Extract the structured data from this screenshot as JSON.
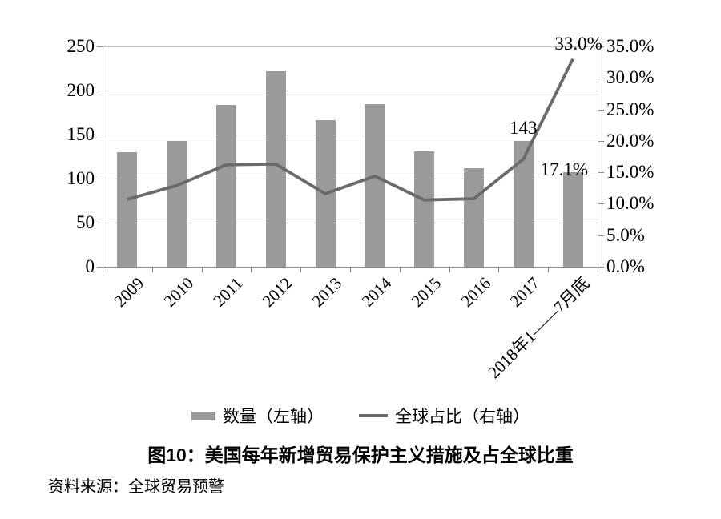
{
  "chart_data": {
    "type": "bar",
    "title": "图10：美国每年新增贸易保护主义措施及占全球比重",
    "categories": [
      "2009",
      "2010",
      "2011",
      "2012",
      "2013",
      "2014",
      "2015",
      "2016",
      "2017",
      "2018年1——7月底"
    ],
    "series": [
      {
        "name": "数量（左轴）",
        "type": "bar",
        "axis": "left",
        "values": [
          130,
          143,
          184,
          222,
          166,
          185,
          131,
          112,
          143,
          107
        ]
      },
      {
        "name": "全球占比（右轴）",
        "type": "line",
        "axis": "right",
        "values": [
          10.7,
          12.9,
          16.2,
          16.3,
          11.6,
          14.4,
          10.6,
          10.8,
          17.1,
          33.0
        ]
      }
    ],
    "left_axis": {
      "min": 0,
      "max": 250,
      "step": 50,
      "ticks": [
        "0",
        "50",
        "100",
        "150",
        "200",
        "250"
      ]
    },
    "right_axis": {
      "min": 0,
      "max": 35,
      "step": 5,
      "ticks": [
        "0.0%",
        "5.0%",
        "10.0%",
        "15.0%",
        "20.0%",
        "25.0%",
        "30.0%",
        "35.0%"
      ]
    },
    "annotations": [
      {
        "text": "143",
        "series_index": 0,
        "index": 8
      },
      {
        "text": "17.1%",
        "series_index": 1,
        "index": 8
      },
      {
        "text": "33.0%",
        "series_index": 1,
        "index": 9
      }
    ],
    "grid": true,
    "legend_position": "bottom"
  },
  "source": "资料来源：全球贸易预警",
  "colors": {
    "bar": "#9a9a9a",
    "line": "#6a6a6a",
    "grid": "#c3c3c3",
    "axis": "#8a8a8a",
    "text": "#000000"
  }
}
